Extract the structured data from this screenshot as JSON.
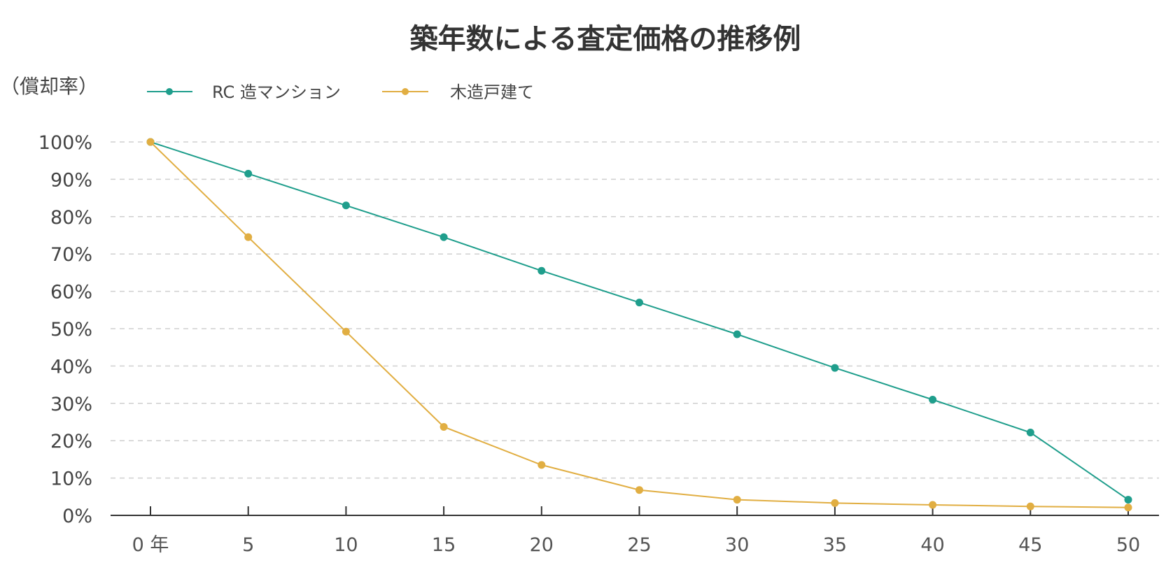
{
  "chart_data": {
    "type": "line",
    "title": "築年数による査定価格の推移例",
    "ylabel": "（償却率）",
    "xlabel": "",
    "categories": [
      "0 年",
      "5",
      "10",
      "15",
      "20",
      "25",
      "30",
      "35",
      "40",
      "45",
      "50"
    ],
    "ylim": [
      0,
      100
    ],
    "yticks": [
      "0%",
      "10%",
      "20%",
      "30%",
      "40%",
      "50%",
      "60%",
      "70%",
      "80%",
      "90%",
      "100%"
    ],
    "grid": true,
    "legend_position": "top-left",
    "series": [
      {
        "name": "RC 造マンション",
        "color": "#1f9e8c",
        "values": [
          100,
          91.5,
          83,
          74.5,
          65.5,
          57,
          48.5,
          39.5,
          31,
          22.2,
          4.2
        ]
      },
      {
        "name": "木造戸建て",
        "color": "#e1ae42",
        "values": [
          100,
          74.5,
          49.2,
          23.7,
          13.5,
          6.8,
          4.2,
          3.3,
          2.8,
          2.4,
          2.1
        ]
      }
    ]
  }
}
